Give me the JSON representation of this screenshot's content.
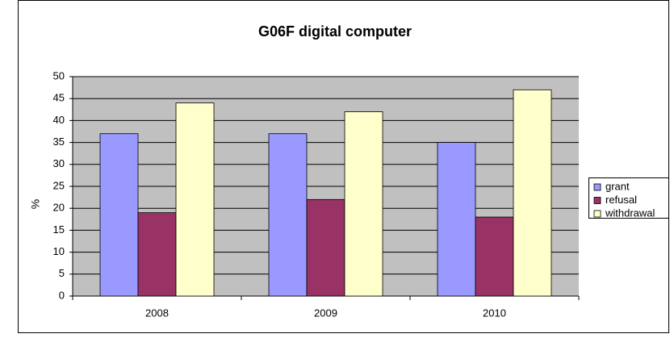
{
  "chart_data": {
    "type": "bar",
    "title": "G06F digital computer",
    "y_label": "%",
    "categories": [
      "2008",
      "2009",
      "2010"
    ],
    "series": [
      {
        "name": "grant",
        "color": "#9999ff",
        "values": [
          37,
          37,
          35
        ]
      },
      {
        "name": "refusal",
        "color": "#993366",
        "values": [
          19,
          22,
          18
        ]
      },
      {
        "name": "withdrawal",
        "color": "#ffffcc",
        "values": [
          44,
          42,
          47
        ]
      }
    ],
    "ylim": [
      0,
      50
    ],
    "yticks": [
      0,
      5,
      10,
      15,
      20,
      25,
      30,
      35,
      40,
      45,
      50
    ],
    "grid": true,
    "legend": "right"
  }
}
